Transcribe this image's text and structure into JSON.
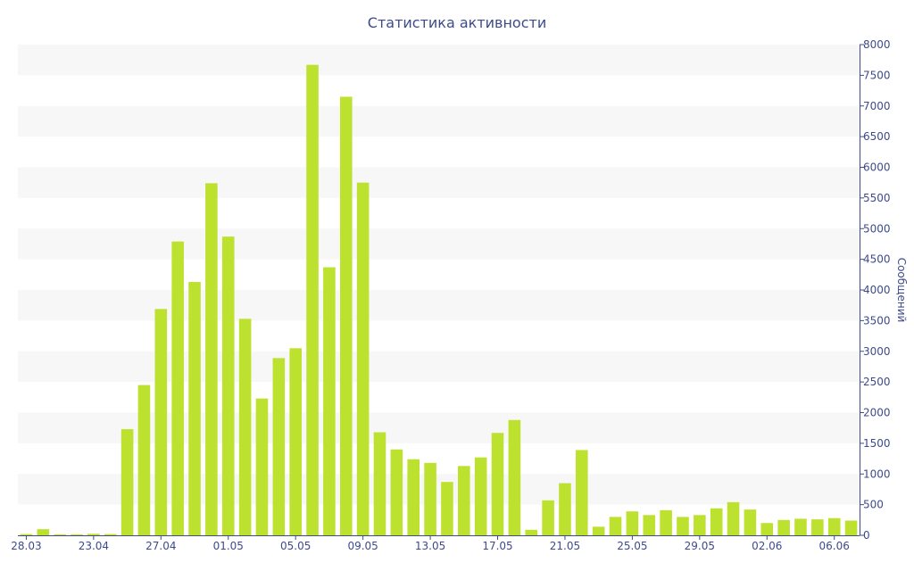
{
  "chart_data": {
    "type": "bar",
    "title": "Статистика активности",
    "ylabel": "Сообщений",
    "xlabel": "",
    "ylim": [
      0,
      8000
    ],
    "ytick_step": 500,
    "y_axis_position": "right",
    "grid": "alternating horizontal bands",
    "x_tick_labels": [
      "28.03",
      "23.04",
      "27.04",
      "01.05",
      "05.05",
      "09.05",
      "13.05",
      "17.05",
      "21.05",
      "25.05",
      "29.05",
      "02.06",
      "06.06"
    ],
    "values": [
      20,
      100,
      15,
      15,
      25,
      20,
      1730,
      2450,
      3690,
      4790,
      4130,
      5740,
      4870,
      3530,
      2230,
      2890,
      3050,
      7670,
      4370,
      7150,
      5750,
      1680,
      1400,
      1240,
      1180,
      870,
      1130,
      1270,
      1670,
      1880,
      90,
      570,
      850,
      1390,
      140,
      300,
      390,
      330,
      410,
      300,
      330,
      440,
      540,
      420,
      200,
      250,
      270,
      260,
      280,
      240
    ],
    "colors": {
      "bar": "#bde12f",
      "band": "#f7f7f7",
      "text": "#3d4b8a"
    }
  }
}
